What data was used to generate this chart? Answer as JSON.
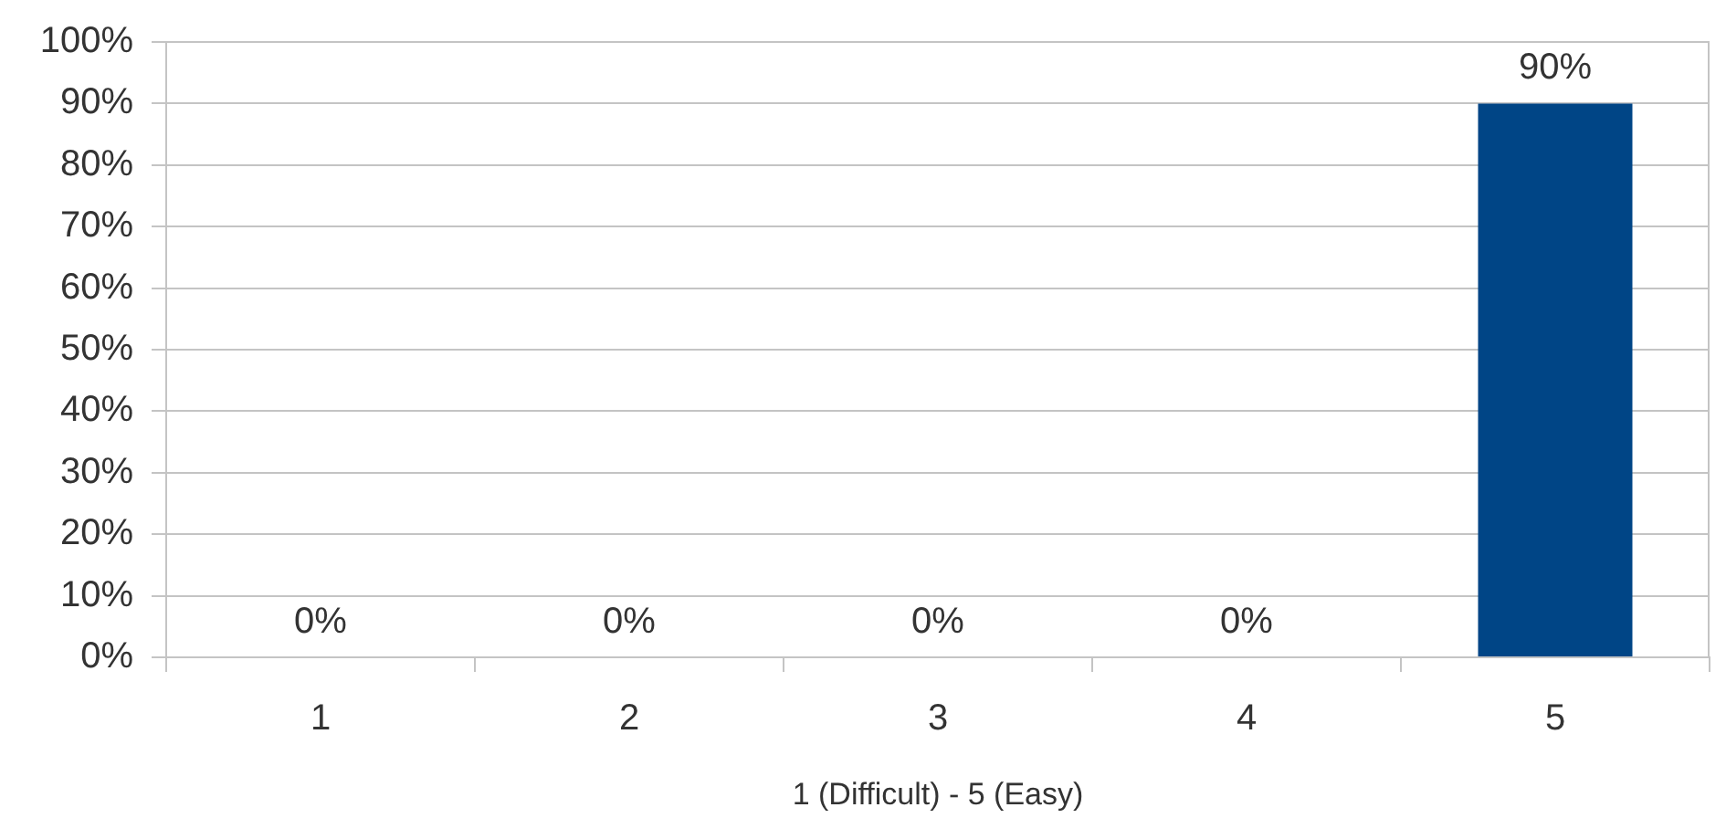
{
  "chart_data": {
    "type": "bar",
    "xlabel": "1 (Difficult) - 5 (Easy)",
    "categories": [
      "1",
      "2",
      "3",
      "4",
      "5"
    ],
    "values": [
      0,
      0,
      0,
      0,
      90
    ],
    "color": "#004586",
    "value_labels": [
      "0%",
      "0%",
      "0%",
      "0%",
      "90%"
    ],
    "ylim": [
      0,
      100
    ],
    "yticks": [
      {
        "value": 0,
        "label": "0%"
      },
      {
        "value": 10,
        "label": "10%"
      },
      {
        "value": 20,
        "label": "20%"
      },
      {
        "value": 30,
        "label": "30%"
      },
      {
        "value": 40,
        "label": "40%"
      },
      {
        "value": 50,
        "label": "50%"
      },
      {
        "value": 60,
        "label": "60%"
      },
      {
        "value": 70,
        "label": "70%"
      },
      {
        "value": 80,
        "label": "80%"
      },
      {
        "value": 90,
        "label": "90%"
      },
      {
        "value": 100,
        "label": "100%"
      }
    ],
    "grid": "y"
  }
}
